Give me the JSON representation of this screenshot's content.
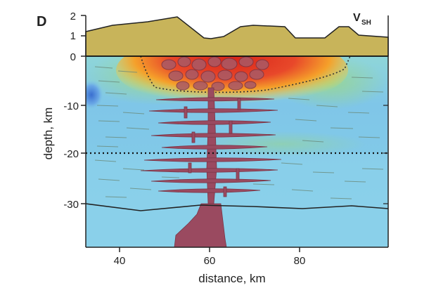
{
  "panel_label": "D",
  "wave_label": {
    "main": "V",
    "sub": "SH"
  },
  "x_axis": {
    "label": "distance, km",
    "ticks": [
      "40",
      "60",
      "80"
    ]
  },
  "y_axis": {
    "label": "depth, km",
    "ticks": [
      "0",
      "-10",
      "-20",
      "-30"
    ]
  },
  "elevation_axis": {
    "ticks": [
      "2",
      "1",
      "0"
    ]
  },
  "colors": {
    "topography": "#c8b45a",
    "background_velocity": "#86cfe6",
    "high_anomaly": "#d42a1c",
    "magma_intrusion": "#9a4a60"
  }
}
